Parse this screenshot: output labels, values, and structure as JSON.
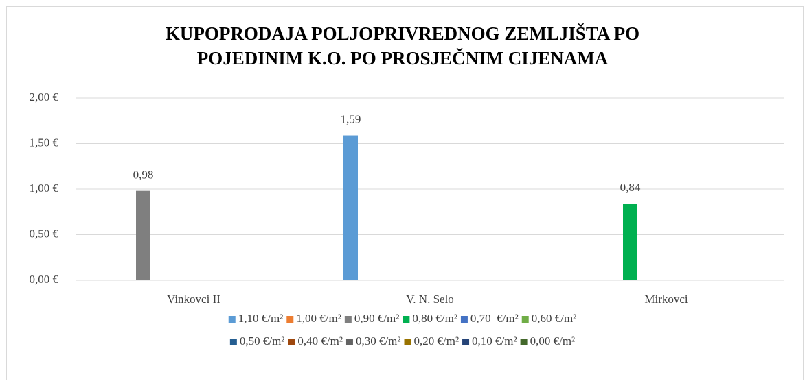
{
  "chart_data": {
    "type": "bar",
    "title": [
      "KUPOPRODAJA POLJOPRIVREDNOG ZEMLJIŠTA PO",
      "POJEDINIM K.O. PO PROSJEČNIM CIJENAMA"
    ],
    "categories": [
      "Vinkovci II",
      "V. N. Selo",
      "Mirkovci"
    ],
    "series": [
      {
        "name": "1,10 €/m²",
        "color": "#5b9bd5",
        "values": [
          null,
          1.59,
          null
        ],
        "value_labels": [
          null,
          "1,59",
          null
        ]
      },
      {
        "name": "1,00 €/m²",
        "color": "#ed7d31",
        "values": [
          null,
          null,
          null
        ]
      },
      {
        "name": "0,90 €/m²",
        "color": "#7f7f7f",
        "values": [
          0.98,
          null,
          null
        ],
        "value_labels": [
          "0,98",
          null,
          null
        ]
      },
      {
        "name": "0,80 €/m²",
        "color": "#00b050",
        "values": [
          null,
          null,
          0.84
        ],
        "value_labels": [
          null,
          null,
          "0,84"
        ]
      },
      {
        "name": "0,70  €/m²",
        "color": "#4472c4",
        "values": [
          null,
          null,
          null
        ]
      },
      {
        "name": "0,60 €/m²",
        "color": "#70ad47",
        "values": [
          null,
          null,
          null
        ]
      },
      {
        "name": "0,50 €/m²",
        "color": "#255e91",
        "values": [
          null,
          null,
          null
        ]
      },
      {
        "name": "0,40 €/m²",
        "color": "#9e480e",
        "values": [
          null,
          null,
          null
        ]
      },
      {
        "name": "0,30 €/m²",
        "color": "#636363",
        "values": [
          null,
          null,
          null
        ]
      },
      {
        "name": "0,20 €/m²",
        "color": "#997300",
        "values": [
          null,
          null,
          null
        ]
      },
      {
        "name": "0,10 €/m²",
        "color": "#264478",
        "values": [
          null,
          null,
          null
        ]
      },
      {
        "name": "0,00 €/m²",
        "color": "#43682b",
        "values": [
          null,
          null,
          null
        ]
      }
    ],
    "ylim": [
      0,
      2
    ],
    "yticks": [
      {
        "value": 0,
        "label": "0,00 €"
      },
      {
        "value": 0.5,
        "label": "0,50 €"
      },
      {
        "value": 1,
        "label": "1,00 €"
      },
      {
        "value": 1.5,
        "label": "1,50 €"
      },
      {
        "value": 2,
        "label": "2,00 €"
      }
    ],
    "grid": true,
    "legend": "bottom"
  }
}
